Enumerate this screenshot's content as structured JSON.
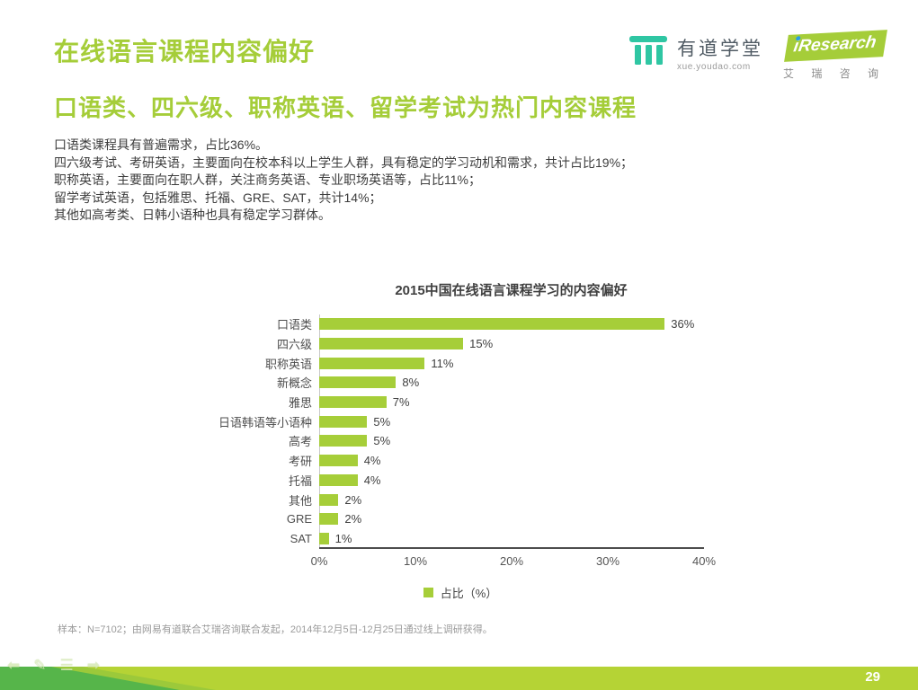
{
  "page": {
    "title": "在线语言课程内容偏好",
    "subtitle": "口语类、四六级、职称英语、留学考试为热门内容课程",
    "page_number": "29"
  },
  "logos": {
    "youdao": {
      "name": "有道学堂",
      "url_text": "xue.youdao.com",
      "icon": "pillar-icon",
      "color": "#2fc6a3"
    },
    "iresearch": {
      "brand": "iResearch",
      "caption": "艾 瑞 咨 询",
      "flag_color": "#a5cd39",
      "dot_color": "#2b9fe0"
    }
  },
  "body": {
    "lines": [
      "口语类课程具有普遍需求，占比36%。",
      "四六级考试、考研英语，主要面向在校本科以上学生人群，具有稳定的学习动机和需求，共计占比19%；",
      "职称英语，主要面向在职人群，关注商务英语、专业职场英语等，占比11%；",
      "留学考试英语，包括雅思、托福、GRE、SAT，共计14%；",
      "其他如高考类、日韩小语种也具有稳定学习群体。"
    ]
  },
  "chart_data": {
    "type": "bar",
    "orientation": "horizontal",
    "title": "2015中国在线语言课程学习的内容偏好",
    "categories": [
      "口语类",
      "四六级",
      "职称英语",
      "新概念",
      "雅思",
      "日语韩语等小语种",
      "高考",
      "考研",
      "托福",
      "其他",
      "GRE",
      "SAT"
    ],
    "values": [
      36,
      15,
      11,
      8,
      7,
      5,
      5,
      4,
      4,
      2,
      2,
      1
    ],
    "unit": "%",
    "xlim": [
      0,
      40
    ],
    "x_ticks": [
      "0%",
      "10%",
      "20%",
      "30%",
      "40%"
    ],
    "bar_color": "#a6ce39",
    "grid": false,
    "legend_position": "bottom",
    "legend": [
      {
        "label": "占比（%）",
        "color": "#a6ce39"
      }
    ]
  },
  "footnote": "样本：N=7102；由网易有道联合艾瑞咨询联合发起，2014年12月5日-12月25日通过线上调研获得。",
  "colors": {
    "accent_green": "#a5cd39",
    "bar_green": "#a6ce39",
    "youdao_teal": "#2fc6a3",
    "footer_bright_green": "#b5d335",
    "footer_dark_green": "#56b54a",
    "iresearch_blue": "#2b9fe0"
  }
}
